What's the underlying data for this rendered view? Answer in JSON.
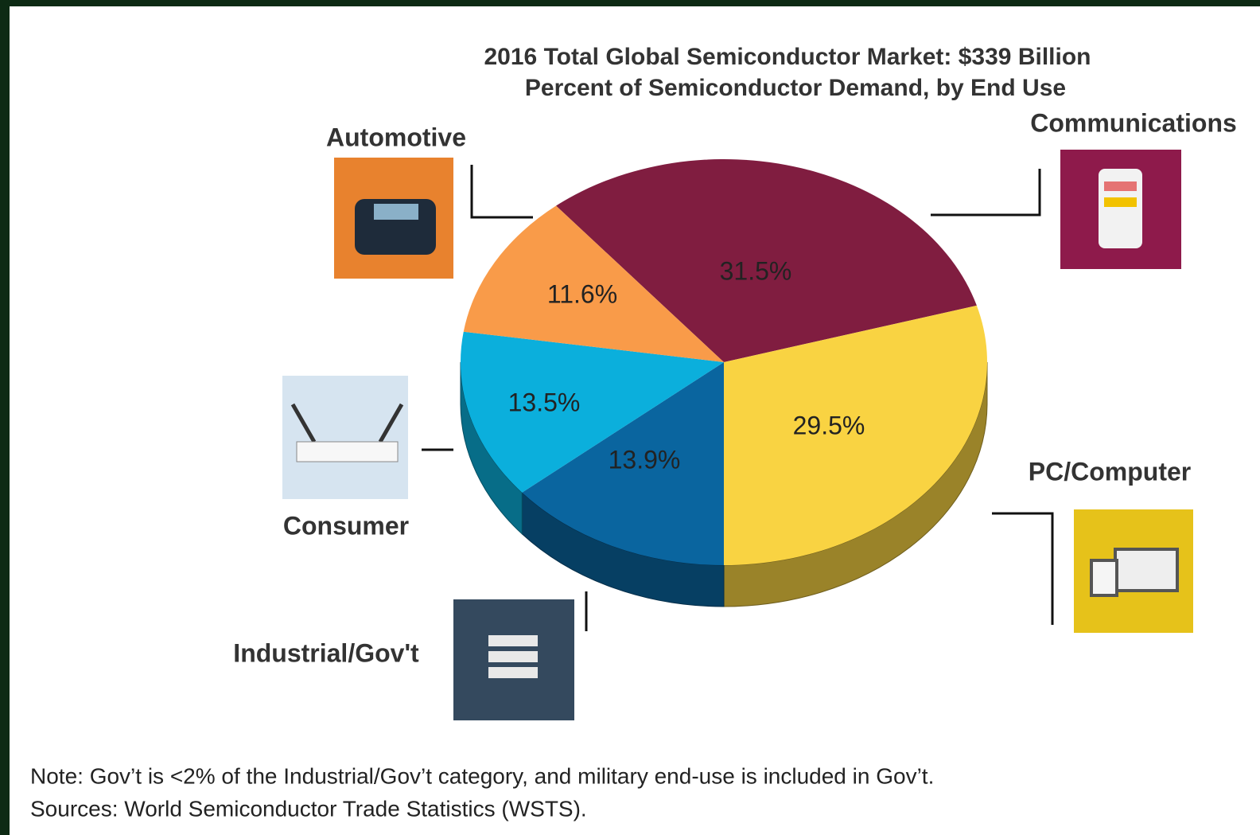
{
  "chart_data": {
    "type": "pie",
    "title": "2016 Total Global Semiconductor Market: $339 Billion",
    "subtitle": "Percent of Semiconductor Demand, by End Use",
    "categories": [
      "Communications",
      "PC/Computer",
      "Industrial/Gov't",
      "Consumer",
      "Automotive"
    ],
    "values": [
      31.5,
      29.5,
      13.9,
      13.5,
      11.6
    ],
    "value_labels": [
      "31.5%",
      "29.5%",
      "13.9%",
      "13.5%",
      "11.6%"
    ],
    "colors": [
      "#801d40",
      "#f9d342",
      "#0a659f",
      "#0bafdc",
      "#f99b49"
    ],
    "notes": [
      "Note: Gov’t is <2% of the Industrial/Gov’t category, and military end-use is included in Gov’t.",
      "Sources: World Semiconductor Trade Statistics (WSTS)."
    ]
  }
}
